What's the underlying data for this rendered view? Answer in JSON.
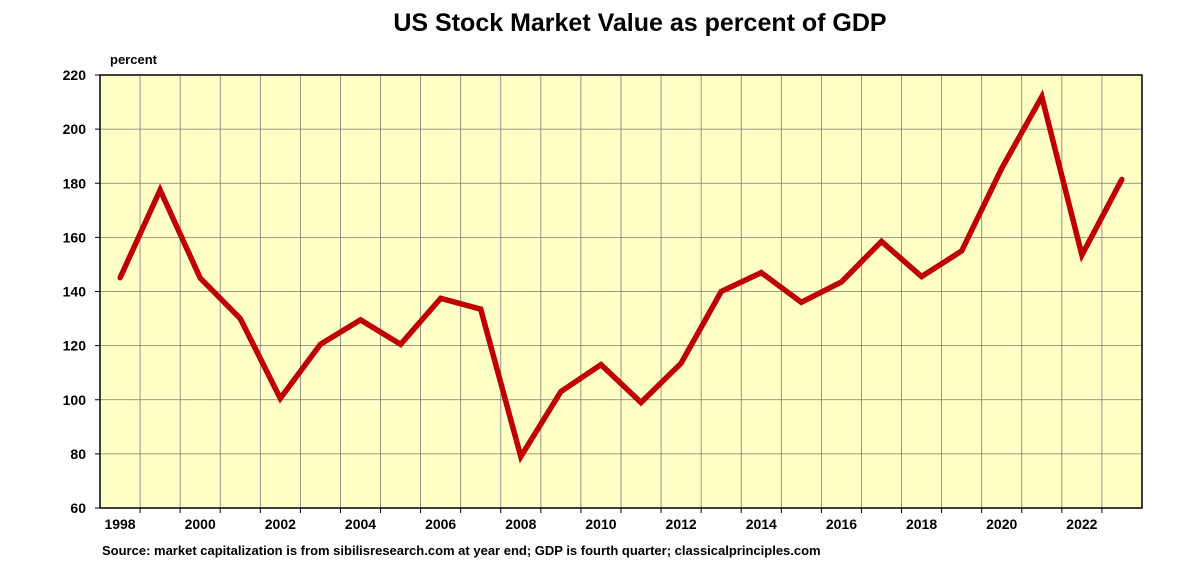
{
  "chart_data": {
    "type": "line",
    "title": "US Stock Market Value as percent of GDP",
    "ylabel": "percent",
    "xlabel": "",
    "source": "Source: market capitalization is from sibilisresearch.com at year end; GDP is fourth quarter; classicalprinciples.com",
    "x": [
      1998,
      1999,
      2000,
      2001,
      2002,
      2003,
      2004,
      2005,
      2006,
      2007,
      2008,
      2009,
      2010,
      2011,
      2012,
      2013,
      2014,
      2015,
      2016,
      2017,
      2018,
      2019,
      2020,
      2021,
      2022,
      2023
    ],
    "series": [
      {
        "name": "",
        "values": [
          145,
          177.5,
          145,
          130,
          100.5,
          120.5,
          129.5,
          120.5,
          137.5,
          133.5,
          79,
          103,
          113,
          99,
          113.5,
          140,
          147,
          136,
          143.5,
          158.5,
          145.5,
          155,
          185.5,
          212,
          153.5,
          181.5
        ]
      }
    ],
    "xlim": [
      1997.5,
      2023.5
    ],
    "ylim": [
      60,
      220
    ],
    "xticks": [
      1998,
      2000,
      2002,
      2004,
      2006,
      2008,
      2010,
      2012,
      2014,
      2016,
      2018,
      2020,
      2022
    ],
    "yticks": [
      60,
      80,
      100,
      120,
      140,
      160,
      180,
      200,
      220
    ],
    "grid": true,
    "legend": "none",
    "colors": {
      "line": "#c00000",
      "plot_background": "#ffffc6",
      "grid": "#7a7a7a",
      "frame": "#000000"
    }
  }
}
